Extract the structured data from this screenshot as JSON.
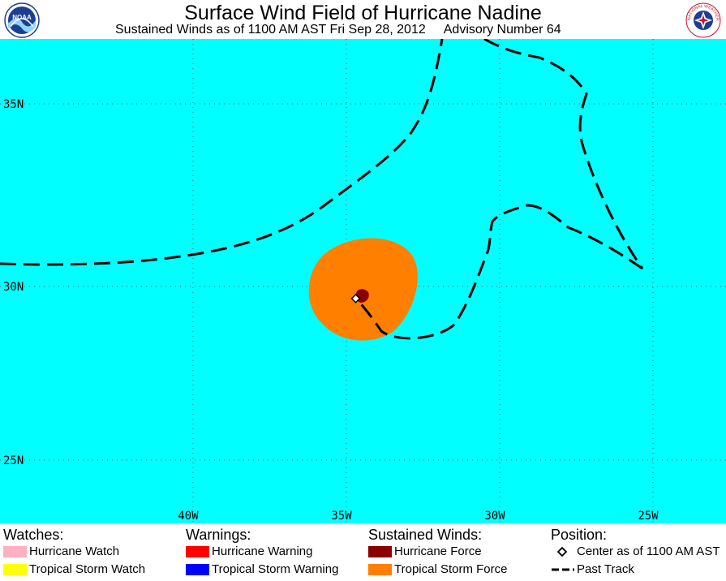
{
  "header": {
    "title": "Surface Wind Field of Hurricane Nadine",
    "subtitle_time": "Sustained Winds as of 1100 AM AST Fri Sep 28, 2012",
    "subtitle_advisory": "Advisory Number 64",
    "left_logo_text": "NOAA",
    "right_logo_text": "NATIONAL WEATHER SERVICE"
  },
  "map": {
    "ocean_color": "#00ffff",
    "grid": true,
    "lat_labels": [
      {
        "text": "35N",
        "lat": 35
      },
      {
        "text": "30N",
        "lat": 30
      },
      {
        "text": "25N",
        "lat": 25
      }
    ],
    "lon_labels": [
      {
        "text": "40W",
        "lon": -40
      },
      {
        "text": "35W",
        "lon": -35
      },
      {
        "text": "30W",
        "lon": -30
      },
      {
        "text": "25W",
        "lon": -25
      }
    ],
    "center": {
      "lat": 29.65,
      "lon": -34.6
    },
    "tropical_storm_force_color": "#ff8000",
    "hurricane_force_color": "#8b0000"
  },
  "legend": {
    "watches": {
      "heading": "Watches:",
      "items": [
        {
          "label": "Hurricane Watch",
          "color": "#ffb0c0"
        },
        {
          "label": "Tropical Storm Watch",
          "color": "#ffff00"
        }
      ]
    },
    "warnings": {
      "heading": "Warnings:",
      "items": [
        {
          "label": "Hurricane Warning",
          "color": "#ff0000"
        },
        {
          "label": "Tropical Storm Warning",
          "color": "#0000ff"
        }
      ]
    },
    "winds": {
      "heading": "Sustained Winds:",
      "items": [
        {
          "label": "Hurricane Force",
          "color": "#8b0000"
        },
        {
          "label": "Tropical Storm Force",
          "color": "#ff8000"
        }
      ]
    },
    "position": {
      "heading": "Position:",
      "center_label": "Center as of 1100 AM AST",
      "track_label": "Past Track"
    }
  }
}
